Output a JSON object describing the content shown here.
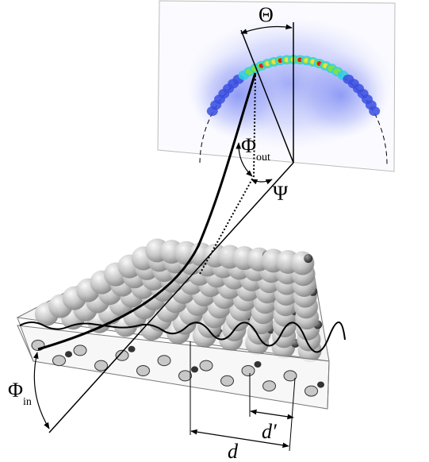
{
  "labels": {
    "theta": "Θ",
    "phi_out": "Φ",
    "phi_out_subscript": "out",
    "psi": "Ψ",
    "phi_in": "Φ",
    "phi_in_subscript": "in",
    "d_prime": "d′",
    "d": "d"
  }
}
